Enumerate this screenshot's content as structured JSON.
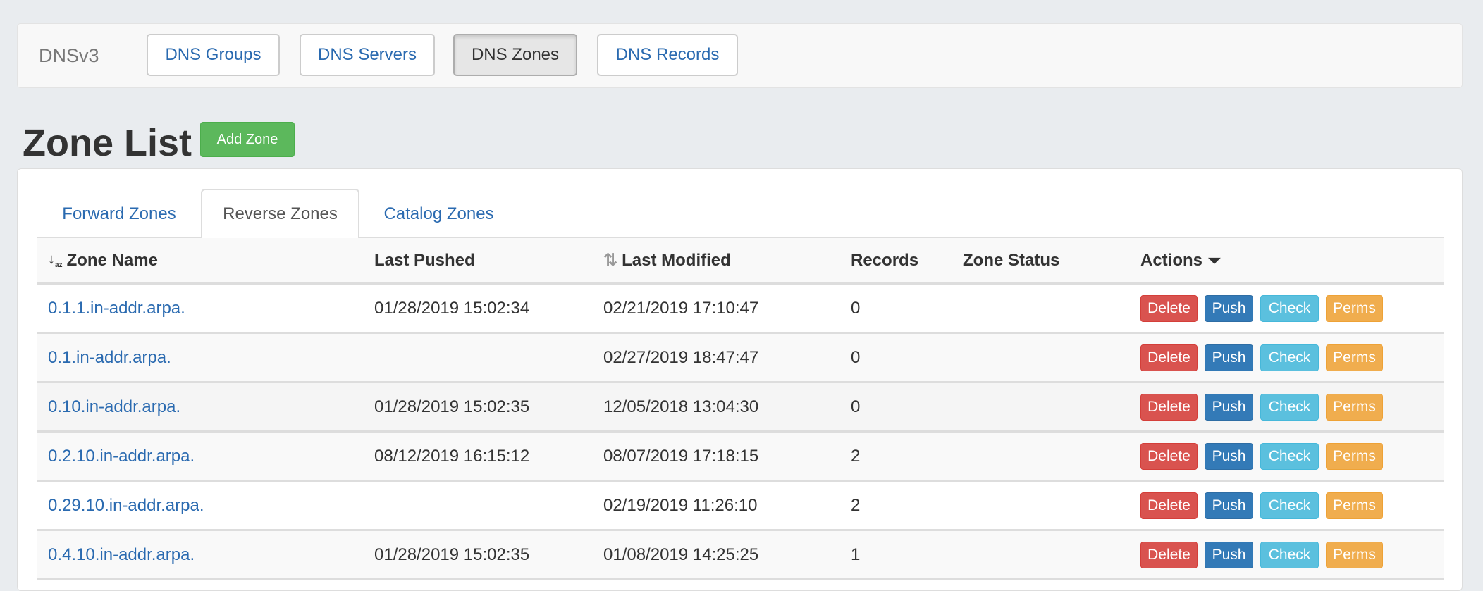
{
  "navbar": {
    "brand": "DNSv3",
    "items": [
      {
        "label": "DNS Groups",
        "active": false
      },
      {
        "label": "DNS Servers",
        "active": false
      },
      {
        "label": "DNS Zones",
        "active": true
      },
      {
        "label": "DNS Records",
        "active": false
      }
    ]
  },
  "page": {
    "title": "Zone List",
    "add_button": "Add Zone"
  },
  "tabs": [
    {
      "label": "Forward Zones",
      "active": false
    },
    {
      "label": "Reverse Zones",
      "active": true
    },
    {
      "label": "Catalog Zones",
      "active": false
    }
  ],
  "table": {
    "headers": {
      "zone_name": "Zone Name",
      "last_pushed": "Last Pushed",
      "last_modified": "Last Modified",
      "records": "Records",
      "zone_status": "Zone Status",
      "actions": "Actions"
    },
    "action_labels": {
      "delete": "Delete",
      "push": "Push",
      "check": "Check",
      "perms": "Perms"
    },
    "rows": [
      {
        "zone": "0.1.1.in-addr.arpa.",
        "last_pushed": "01/28/2019 15:02:34",
        "last_modified": "02/21/2019 17:10:47",
        "records": "0",
        "status": ""
      },
      {
        "zone": "0.1.in-addr.arpa.",
        "last_pushed": "",
        "last_modified": "02/27/2019 18:47:47",
        "records": "0",
        "status": ""
      },
      {
        "zone": "0.10.in-addr.arpa.",
        "last_pushed": "01/28/2019 15:02:35",
        "last_modified": "12/05/2018 13:04:30",
        "records": "0",
        "status": ""
      },
      {
        "zone": "0.2.10.in-addr.arpa.",
        "last_pushed": "08/12/2019 16:15:12",
        "last_modified": "08/07/2019 17:18:15",
        "records": "2",
        "status": ""
      },
      {
        "zone": "0.29.10.in-addr.arpa.",
        "last_pushed": "",
        "last_modified": "02/19/2019 11:26:10",
        "records": "2",
        "status": ""
      },
      {
        "zone": "0.4.10.in-addr.arpa.",
        "last_pushed": "01/28/2019 15:02:35",
        "last_modified": "01/08/2019 14:25:25",
        "records": "1",
        "status": ""
      }
    ]
  },
  "colors": {
    "link": "#2a6ab0",
    "success": "#5cb85c",
    "danger": "#d9534f",
    "primary": "#337ab7",
    "info": "#5bc0de",
    "warning": "#f0ad4e"
  }
}
